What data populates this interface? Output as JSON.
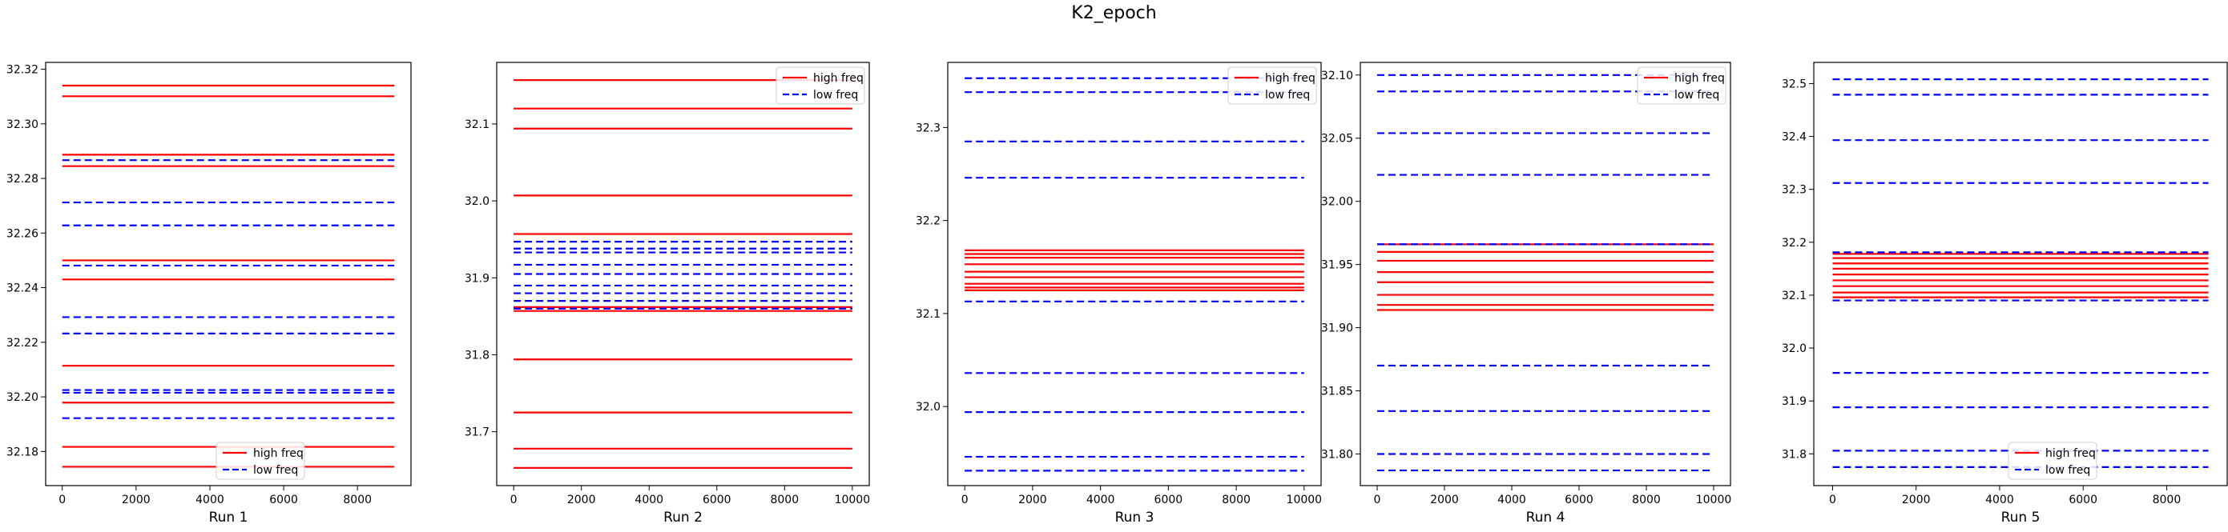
{
  "title": "K2_epoch",
  "colors": {
    "high": "#ff0000",
    "low": "#0000ff",
    "axis": "#000000"
  },
  "chart_data": [
    {
      "type": "line",
      "xlabel": "Run 1",
      "xlim": [
        -450,
        9450
      ],
      "xticks": [
        0,
        2000,
        4000,
        6000,
        8000
      ],
      "ylim": [
        32.1675,
        32.3225
      ],
      "yticks": [
        32.18,
        32.2,
        32.22,
        32.24,
        32.26,
        32.28,
        32.3,
        32.32
      ],
      "ytick_decimals": 2,
      "x_range": [
        0,
        9000
      ],
      "legend": {
        "position": "lower-center"
      },
      "series": [
        {
          "name": "high freq",
          "style": "solid",
          "color": "#ff0000",
          "values": [
            32.314,
            32.3101,
            32.2887,
            32.2845,
            32.25,
            32.243,
            32.2114,
            32.1979,
            32.1817,
            32.1744
          ]
        },
        {
          "name": "low freq",
          "style": "dashed",
          "color": "#0000ff",
          "values": [
            32.2867,
            32.2712,
            32.2628,
            32.2481,
            32.2292,
            32.2232,
            32.2025,
            32.2015,
            32.1922
          ]
        }
      ]
    },
    {
      "type": "line",
      "xlabel": "Run 2",
      "xlim": [
        -500,
        10500
      ],
      "xticks": [
        0,
        2000,
        4000,
        6000,
        8000,
        10000
      ],
      "ylim": [
        31.63,
        32.18
      ],
      "yticks": [
        31.7,
        31.8,
        31.9,
        32.0,
        32.1
      ],
      "ytick_decimals": 1,
      "x_range": [
        0,
        10000
      ],
      "legend": {
        "position": "top-right"
      },
      "series": [
        {
          "name": "high freq",
          "style": "solid",
          "color": "#ff0000",
          "values": [
            32.157,
            32.12,
            32.094,
            32.007,
            31.957,
            31.862,
            31.857,
            31.794,
            31.725,
            31.678,
            31.653
          ]
        },
        {
          "name": "low freq",
          "style": "dashed",
          "color": "#0000ff",
          "values": [
            31.947,
            31.938,
            31.933,
            31.917,
            31.905,
            31.89,
            31.88,
            31.87,
            31.86
          ]
        }
      ]
    },
    {
      "type": "line",
      "xlabel": "Run 3",
      "xlim": [
        -500,
        10500
      ],
      "xticks": [
        0,
        2000,
        4000,
        6000,
        8000,
        10000
      ],
      "ylim": [
        31.915,
        32.37
      ],
      "yticks": [
        32.0,
        32.1,
        32.2,
        32.3
      ],
      "ytick_decimals": 1,
      "x_range": [
        0,
        10000
      ],
      "legend": {
        "position": "top-right"
      },
      "series": [
        {
          "name": "high freq",
          "style": "solid",
          "color": "#ff0000",
          "values": [
            32.168,
            32.164,
            32.16,
            32.153,
            32.145,
            32.139,
            32.132,
            32.128,
            32.125
          ]
        },
        {
          "name": "low freq",
          "style": "dashed",
          "color": "#0000ff",
          "values": [
            32.353,
            32.338,
            32.285,
            32.246,
            32.113,
            32.036,
            31.994,
            31.946,
            31.931
          ]
        }
      ]
    },
    {
      "type": "line",
      "xlabel": "Run 4",
      "xlim": [
        -500,
        10500
      ],
      "xticks": [
        0,
        2000,
        4000,
        6000,
        8000,
        10000
      ],
      "ylim": [
        31.775,
        32.11
      ],
      "yticks": [
        31.8,
        31.85,
        31.9,
        31.95,
        32.0,
        32.05,
        32.1
      ],
      "ytick_decimals": 2,
      "x_range": [
        0,
        10000
      ],
      "legend": {
        "position": "top-right"
      },
      "series": [
        {
          "name": "high freq",
          "style": "solid",
          "color": "#ff0000",
          "values": [
            31.966,
            31.96,
            31.953,
            31.944,
            31.936,
            31.926,
            31.918,
            31.914
          ]
        },
        {
          "name": "low freq",
          "style": "dashed",
          "color": "#0000ff",
          "values": [
            32.1,
            32.087,
            32.054,
            32.021,
            31.966,
            31.87,
            31.834,
            31.8,
            31.787
          ]
        }
      ]
    },
    {
      "type": "line",
      "xlabel": "Run 5",
      "xlim": [
        -450,
        9450
      ],
      "xticks": [
        0,
        2000,
        4000,
        6000,
        8000
      ],
      "ylim": [
        31.74,
        32.54
      ],
      "yticks": [
        31.8,
        31.9,
        32.0,
        32.1,
        32.2,
        32.3,
        32.4,
        32.5
      ],
      "ytick_decimals": 1,
      "x_range": [
        0,
        9000
      ],
      "legend": {
        "position": "lower-center"
      },
      "series": [
        {
          "name": "high freq",
          "style": "solid",
          "color": "#ff0000",
          "values": [
            32.178,
            32.17,
            32.16,
            32.15,
            32.139,
            32.128,
            32.117,
            32.105,
            32.096
          ]
        },
        {
          "name": "low freq",
          "style": "dashed",
          "color": "#0000ff",
          "values": [
            32.508,
            32.479,
            32.393,
            32.312,
            32.181,
            32.09,
            31.953,
            31.888,
            31.806,
            31.775
          ]
        }
      ]
    }
  ]
}
